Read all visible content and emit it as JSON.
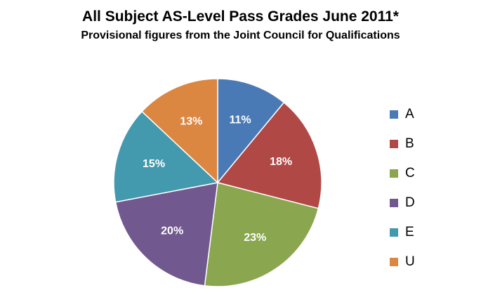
{
  "chart_data": {
    "type": "pie",
    "title": "All Subject AS-Level Pass Grades June 2011*",
    "subtitle": "Provisional figures from the Joint Council for Qualifications",
    "legend_position": "right",
    "slices": [
      {
        "label": "A",
        "value": 11,
        "display": "11%",
        "color": "#4a7ab5"
      },
      {
        "label": "B",
        "value": 18,
        "display": "18%",
        "color": "#b04846"
      },
      {
        "label": "C",
        "value": 23,
        "display": "23%",
        "color": "#8aa64f"
      },
      {
        "label": "D",
        "value": 20,
        "display": "20%",
        "color": "#71598f"
      },
      {
        "label": "E",
        "value": 15,
        "display": "15%",
        "color": "#4399ad"
      },
      {
        "label": "U",
        "value": 13,
        "display": "13%",
        "color": "#db8641"
      }
    ]
  }
}
